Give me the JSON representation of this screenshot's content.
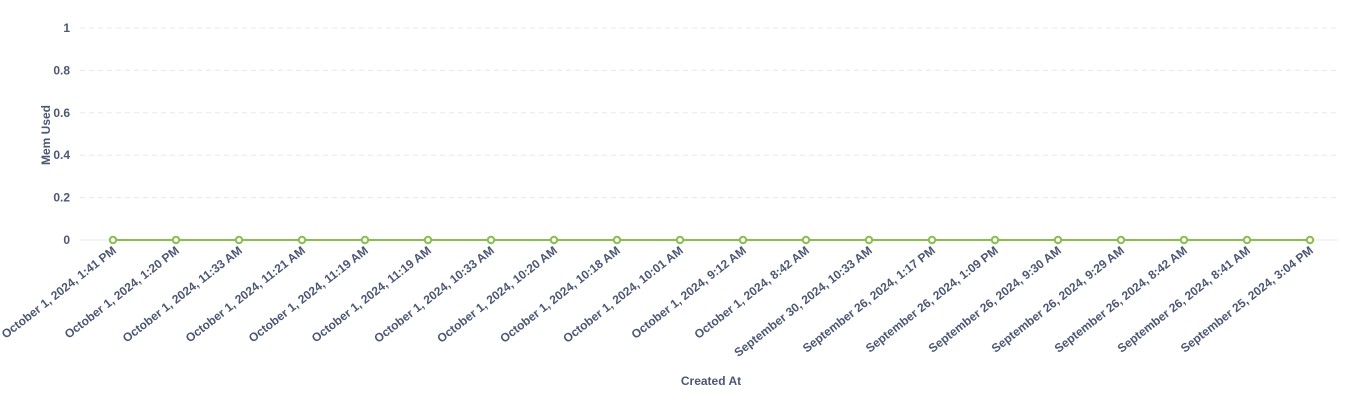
{
  "chart_data": {
    "type": "line",
    "xlabel": "Created At",
    "ylabel": "Mem Used",
    "ylim": [
      0,
      1
    ],
    "yticks": [
      "0",
      "0.2",
      "0.4",
      "0.6",
      "0.8",
      "1"
    ],
    "grid": true,
    "categories": [
      "October 1, 2024, 1:41 PM",
      "October 1, 2024, 1:20 PM",
      "October 1, 2024, 11:33 AM",
      "October 1, 2024, 11:21 AM",
      "October 1, 2024, 11:19 AM",
      "October 1, 2024, 11:19 AM",
      "October 1, 2024, 10:33 AM",
      "October 1, 2024, 10:20 AM",
      "October 1, 2024, 10:18 AM",
      "October 1, 2024, 10:01 AM",
      "October 1, 2024, 9:12 AM",
      "October 1, 2024, 8:42 AM",
      "September 30, 2024, 10:33 AM",
      "September 26, 2024, 1:17 PM",
      "September 26, 2024, 1:09 PM",
      "September 26, 2024, 9:30 AM",
      "September 26, 2024, 9:29 AM",
      "September 26, 2024, 8:42 AM",
      "September 26, 2024, 8:41 AM",
      "September 25, 2024, 3:04 PM"
    ],
    "series": [
      {
        "color": "#88bf4d",
        "values": [
          0,
          0,
          0,
          0,
          0,
          0,
          0,
          0,
          0,
          0,
          0,
          0,
          0,
          0,
          0,
          0,
          0,
          0,
          0,
          0
        ]
      }
    ]
  }
}
